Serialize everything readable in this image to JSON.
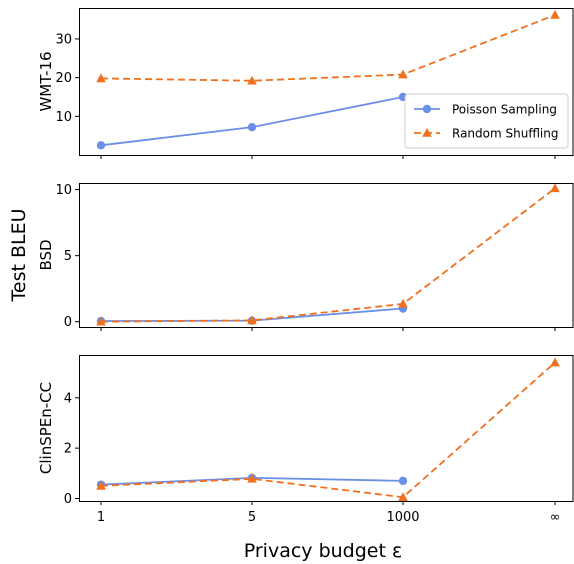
{
  "chart_data": {
    "type": "line",
    "shared_ylabel": "Test BLEU",
    "xlabel": "Privacy budget ε",
    "x_categories": [
      "1",
      "5",
      "1000",
      "∞"
    ],
    "legend": {
      "placement": "lower-right of top panel"
    },
    "series_styles": [
      {
        "name": "Poisson Sampling",
        "color": "#6b8fe6",
        "line": "solid",
        "marker": "circle"
      },
      {
        "name": "Random Shuffling",
        "color": "#f0701e",
        "line": "dashed",
        "marker": "triangle"
      }
    ],
    "panels": [
      {
        "ylabel": "WMT-16",
        "ylim": [
          0,
          38
        ],
        "yticks": [
          10,
          20,
          30
        ],
        "series": [
          {
            "name": "Poisson Sampling",
            "values": [
              2.5,
              7.2,
              15.0,
              null
            ]
          },
          {
            "name": "Random Shuffling",
            "values": [
              19.8,
              19.2,
              20.8,
              36.2
            ]
          }
        ]
      },
      {
        "ylabel": "BSD",
        "ylim": [
          -0.4,
          10.5
        ],
        "yticks": [
          0,
          5,
          10
        ],
        "series": [
          {
            "name": "Poisson Sampling",
            "values": [
              0.05,
              0.08,
              1.0,
              null
            ]
          },
          {
            "name": "Random Shuffling",
            "values": [
              0.0,
              0.1,
              1.35,
              10.1
            ]
          }
        ]
      },
      {
        "ylabel": "ClinSPEn-CC",
        "ylim": [
          -0.1,
          5.7
        ],
        "yticks": [
          0,
          2,
          4
        ],
        "series": [
          {
            "name": "Poisson Sampling",
            "values": [
              0.55,
              0.82,
              0.7,
              null
            ]
          },
          {
            "name": "Random Shuffling",
            "values": [
              0.5,
              0.78,
              0.05,
              5.4
            ]
          }
        ]
      }
    ]
  }
}
